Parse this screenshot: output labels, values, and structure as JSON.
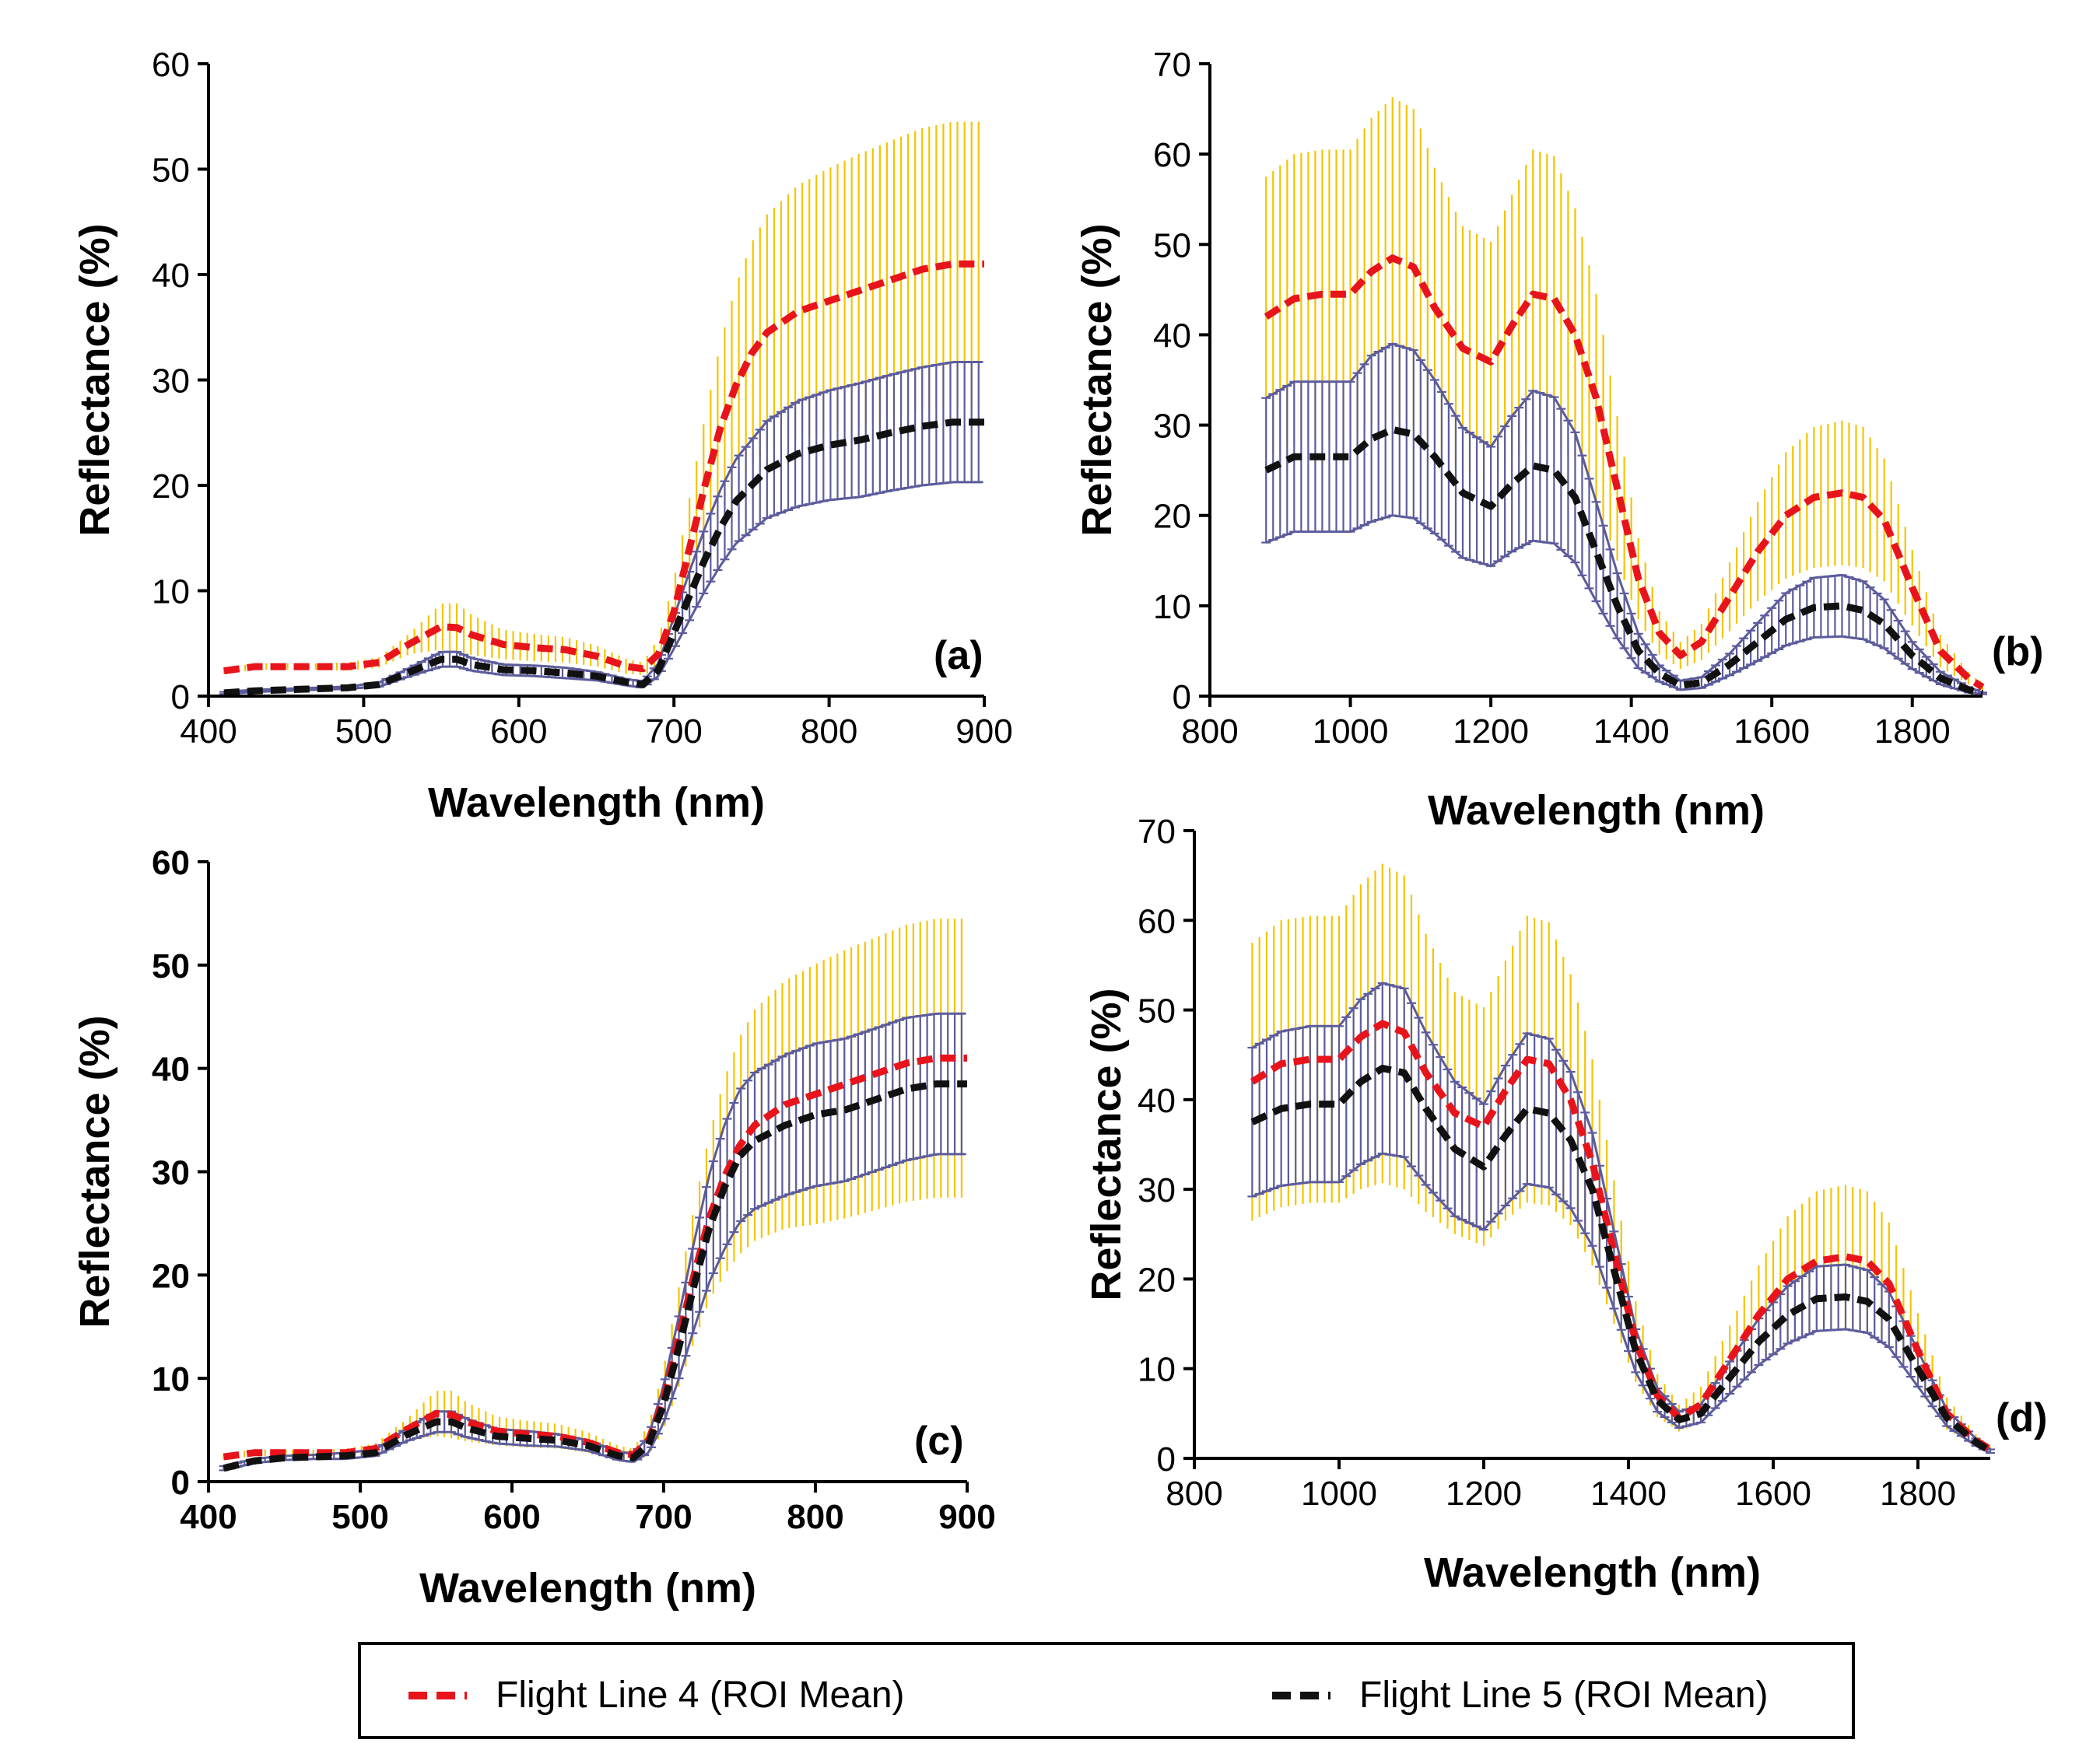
{
  "legend": {
    "items": [
      {
        "label": "Flight Line 4 (ROI Mean)",
        "color": "#e8141b"
      },
      {
        "label": "Flight Line 5 (ROI Mean)",
        "color": "#111111"
      }
    ]
  },
  "chart_data": [
    {
      "panel_label": "(a)",
      "type": "line",
      "xlabel": "Wavelength (nm)",
      "ylabel": "Reflectance (%)",
      "xlim": [
        400,
        900
      ],
      "ylim": [
        0,
        60
      ],
      "xticks": [
        "400",
        "500",
        "600",
        "700",
        "800",
        "900"
      ],
      "yticks": [
        "0",
        "10",
        "20",
        "30",
        "40",
        "50",
        "60"
      ],
      "tick_bold": false,
      "series": [
        {
          "name": "Flight Line 4 (ROI Mean)",
          "color": "#e8141b",
          "errcolor": "#f5c400",
          "x": [
            410,
            430,
            450,
            470,
            490,
            510,
            530,
            550,
            560,
            570,
            590,
            610,
            630,
            650,
            670,
            680,
            690,
            700,
            710,
            720,
            730,
            740,
            750,
            760,
            780,
            800,
            820,
            840,
            860,
            880,
            900
          ],
          "y": [
            2.4,
            2.8,
            2.8,
            2.8,
            2.8,
            3.2,
            5.0,
            6.6,
            6.5,
            5.8,
            4.9,
            4.6,
            4.4,
            3.8,
            2.8,
            2.6,
            4.0,
            8.0,
            14.0,
            20.0,
            25.5,
            29.5,
            32.5,
            34.5,
            36.5,
            37.5,
            38.5,
            39.5,
            40.5,
            41.0,
            41.0
          ],
          "err": [
            0.3,
            0.3,
            0.3,
            0.3,
            0.4,
            0.5,
            1.0,
            2.2,
            2.3,
            1.9,
            1.4,
            1.3,
            1.2,
            1.0,
            0.7,
            0.6,
            1.5,
            3.0,
            4.8,
            6.5,
            8.0,
            9.5,
            10.5,
            11.2,
            12.0,
            12.6,
            13.0,
            13.2,
            13.4,
            13.5,
            13.5
          ]
        },
        {
          "name": "Flight Line 5 (ROI Mean)",
          "color": "#111111",
          "errcolor": "#5c5c9c",
          "x": [
            410,
            430,
            450,
            470,
            490,
            510,
            530,
            550,
            560,
            570,
            590,
            610,
            630,
            650,
            670,
            680,
            690,
            700,
            710,
            720,
            730,
            740,
            750,
            760,
            780,
            800,
            820,
            840,
            860,
            880,
            900
          ],
          "y": [
            0.3,
            0.5,
            0.6,
            0.7,
            0.8,
            1.1,
            2.3,
            3.5,
            3.5,
            3.0,
            2.5,
            2.4,
            2.2,
            1.9,
            1.3,
            1.1,
            2.5,
            6.0,
            9.5,
            13.0,
            16.0,
            18.5,
            20.0,
            21.5,
            23.0,
            23.8,
            24.3,
            25.0,
            25.6,
            26.0,
            26.0
          ],
          "err": [
            0.1,
            0.1,
            0.1,
            0.1,
            0.1,
            0.2,
            0.4,
            0.7,
            0.7,
            0.6,
            0.5,
            0.5,
            0.5,
            0.4,
            0.3,
            0.3,
            0.6,
            1.5,
            2.3,
            3.0,
            3.6,
            4.0,
            4.3,
            4.6,
            5.0,
            5.2,
            5.4,
            5.5,
            5.6,
            5.7,
            5.7
          ]
        }
      ]
    },
    {
      "panel_label": "(b)",
      "type": "line",
      "xlabel": "Wavelength (nm)",
      "ylabel": "Reflectance (%)",
      "xlim": [
        800,
        1900
      ],
      "ylim": [
        0,
        70
      ],
      "xticks": [
        "800",
        "1000",
        "1200",
        "1400",
        "1600",
        "1800"
      ],
      "yticks": [
        "0",
        "10",
        "20",
        "30",
        "40",
        "50",
        "60",
        "70"
      ],
      "tick_bold": false,
      "series": [
        {
          "name": "Flight Line 4 (ROI Mean)",
          "color": "#e8141b",
          "errcolor": "#f5c400",
          "x": [
            880,
            920,
            960,
            1000,
            1030,
            1060,
            1090,
            1120,
            1160,
            1200,
            1230,
            1260,
            1290,
            1320,
            1350,
            1380,
            1410,
            1440,
            1470,
            1500,
            1540,
            1580,
            1620,
            1660,
            1700,
            1730,
            1760,
            1800,
            1840,
            1880,
            1900
          ],
          "y": [
            42,
            44,
            44.5,
            44.5,
            47,
            48.5,
            47.5,
            43,
            38.5,
            37,
            41,
            44.5,
            44,
            40,
            33,
            23,
            13,
            7,
            4.5,
            6,
            11,
            16,
            20,
            22,
            22.5,
            22,
            19.5,
            12,
            5,
            2,
            1
          ],
          "err": [
            15.5,
            16,
            16,
            16,
            17,
            17.8,
            17.5,
            15.5,
            13.5,
            13.3,
            14.5,
            16,
            15.8,
            14,
            11.5,
            8,
            4.5,
            2.4,
            1.5,
            2,
            3.8,
            5.5,
            7,
            7.8,
            8,
            7.8,
            6.8,
            4.2,
            1.8,
            0.7,
            0.3
          ]
        },
        {
          "name": "Flight Line 5 (ROI Mean)",
          "color": "#111111",
          "errcolor": "#5c5c9c",
          "x": [
            880,
            920,
            960,
            1000,
            1030,
            1060,
            1090,
            1120,
            1160,
            1200,
            1230,
            1260,
            1290,
            1320,
            1350,
            1380,
            1410,
            1440,
            1470,
            1500,
            1540,
            1580,
            1620,
            1660,
            1700,
            1730,
            1760,
            1800,
            1840,
            1880,
            1900
          ],
          "y": [
            25,
            26.5,
            26.5,
            26.5,
            28.5,
            29.5,
            29,
            26.5,
            22.5,
            21,
            23.5,
            25.5,
            25,
            22,
            16,
            10,
            5,
            2.5,
            1.2,
            1.5,
            3.5,
            6,
            8.5,
            9.8,
            10,
            9.5,
            8,
            4.5,
            2,
            0.7,
            0.3
          ],
          "err": [
            8,
            8.3,
            8.3,
            8.3,
            9.2,
            9.5,
            9.3,
            8.5,
            7.2,
            6.6,
            7.5,
            8.3,
            8.1,
            7.2,
            5.5,
            3.6,
            1.9,
            0.9,
            0.5,
            0.6,
            1.2,
            2.1,
            2.9,
            3.3,
            3.4,
            3.2,
            2.7,
            1.5,
            0.7,
            0.3,
            0.1
          ]
        }
      ]
    },
    {
      "panel_label": "(c)",
      "type": "line",
      "xlabel": "Wavelength (nm)",
      "ylabel": "Reflectance (%)",
      "xlim": [
        400,
        900
      ],
      "ylim": [
        0,
        60
      ],
      "xticks": [
        "400",
        "500",
        "600",
        "700",
        "800",
        "900"
      ],
      "yticks": [
        "0",
        "10",
        "20",
        "30",
        "40",
        "50",
        "60"
      ],
      "tick_bold": true,
      "series": [
        {
          "name": "Flight Line 4 (ROI Mean)",
          "color": "#e8141b",
          "errcolor": "#f5c400",
          "x": [
            410,
            430,
            450,
            470,
            490,
            510,
            530,
            550,
            560,
            570,
            590,
            610,
            630,
            650,
            670,
            680,
            690,
            700,
            710,
            720,
            730,
            740,
            750,
            760,
            780,
            800,
            820,
            840,
            860,
            880,
            900
          ],
          "y": [
            2.4,
            2.8,
            2.8,
            2.8,
            2.8,
            3.2,
            5.0,
            6.6,
            6.5,
            5.8,
            4.9,
            4.6,
            4.4,
            3.8,
            2.8,
            2.6,
            4.0,
            8.0,
            14.0,
            20.0,
            25.5,
            29.5,
            32.5,
            34.5,
            36.5,
            37.5,
            38.5,
            39.5,
            40.5,
            41.0,
            41.0
          ],
          "err": [
            0.3,
            0.3,
            0.3,
            0.3,
            0.4,
            0.5,
            1.0,
            2.2,
            2.3,
            1.9,
            1.4,
            1.3,
            1.2,
            1.0,
            0.7,
            0.6,
            1.5,
            3.0,
            4.8,
            6.5,
            8.0,
            9.5,
            10.5,
            11.2,
            12.0,
            12.6,
            13.0,
            13.2,
            13.4,
            13.5,
            13.5
          ]
        },
        {
          "name": "Flight Line 5 (ROI Mean)",
          "color": "#111111",
          "errcolor": "#5c5c9c",
          "x": [
            410,
            430,
            450,
            470,
            490,
            510,
            530,
            550,
            560,
            570,
            590,
            610,
            630,
            650,
            670,
            680,
            690,
            700,
            710,
            720,
            730,
            740,
            750,
            760,
            780,
            800,
            820,
            840,
            860,
            880,
            900
          ],
          "y": [
            1.3,
            2.0,
            2.3,
            2.4,
            2.5,
            2.8,
            4.5,
            5.8,
            5.8,
            5.2,
            4.4,
            4.2,
            4.0,
            3.5,
            2.5,
            2.3,
            3.6,
            7.5,
            13.0,
            19.0,
            24.5,
            28.5,
            31.5,
            33.0,
            34.5,
            35.5,
            36.0,
            37.0,
            38.0,
            38.5,
            38.5
          ],
          "err": [
            0.2,
            0.2,
            0.2,
            0.2,
            0.3,
            0.3,
            0.6,
            1.0,
            1.0,
            0.9,
            0.7,
            0.7,
            0.6,
            0.5,
            0.4,
            0.4,
            0.8,
            1.8,
            3.0,
            4.2,
            5.2,
            6.0,
            6.4,
            6.6,
            6.8,
            6.9,
            6.9,
            6.9,
            6.9,
            6.8,
            6.8
          ]
        }
      ]
    },
    {
      "panel_label": "(d)",
      "type": "line",
      "xlabel": "Wavelength (nm)",
      "ylabel": "Reflectance (%)",
      "xlim": [
        800,
        1900
      ],
      "ylim": [
        0,
        70
      ],
      "xticks": [
        "800",
        "1000",
        "1200",
        "1400",
        "1600",
        "1800"
      ],
      "yticks": [
        "0",
        "10",
        "20",
        "30",
        "40",
        "50",
        "60",
        "70"
      ],
      "tick_bold": false,
      "series": [
        {
          "name": "Flight Line 4 (ROI Mean)",
          "color": "#e8141b",
          "errcolor": "#f5c400",
          "x": [
            880,
            920,
            960,
            1000,
            1030,
            1060,
            1090,
            1120,
            1160,
            1200,
            1230,
            1260,
            1290,
            1320,
            1350,
            1380,
            1410,
            1440,
            1470,
            1500,
            1540,
            1580,
            1620,
            1660,
            1700,
            1730,
            1760,
            1800,
            1840,
            1880,
            1900
          ],
          "y": [
            42,
            44,
            44.5,
            44.5,
            47,
            48.5,
            47.5,
            43,
            38.5,
            37,
            41,
            44.5,
            44,
            40,
            33,
            23,
            13,
            7,
            4.5,
            6,
            11,
            16,
            20,
            22,
            22.5,
            22,
            19.5,
            12,
            5,
            2,
            1
          ],
          "err": [
            15.5,
            16,
            16,
            16,
            17,
            17.8,
            17.5,
            15.5,
            13.5,
            13.3,
            14.5,
            16,
            15.8,
            14,
            11.5,
            8,
            4.5,
            2.4,
            1.5,
            2,
            3.8,
            5.5,
            7,
            7.8,
            8,
            7.8,
            6.8,
            4.2,
            1.8,
            0.7,
            0.3
          ]
        },
        {
          "name": "Flight Line 5 (ROI Mean)",
          "color": "#111111",
          "errcolor": "#5c5c9c",
          "x": [
            880,
            920,
            960,
            1000,
            1030,
            1060,
            1090,
            1120,
            1160,
            1200,
            1230,
            1260,
            1290,
            1320,
            1350,
            1380,
            1410,
            1440,
            1470,
            1500,
            1540,
            1580,
            1620,
            1660,
            1700,
            1730,
            1760,
            1800,
            1840,
            1880,
            1900
          ],
          "y": [
            37.5,
            39,
            39.5,
            39.5,
            42,
            43.5,
            43,
            39,
            34.5,
            32.5,
            36,
            39,
            38.5,
            35.5,
            30,
            21,
            12,
            6.5,
            4.3,
            5,
            9,
            13,
            16,
            17.8,
            18,
            17.5,
            15.5,
            10,
            4.5,
            1.8,
            0.8
          ],
          "err": [
            8.3,
            8.6,
            8.7,
            8.7,
            9.2,
            9.5,
            9.4,
            8.5,
            7.5,
            7.0,
            7.8,
            8.4,
            8.3,
            7.6,
            6.3,
            4.3,
            2.4,
            1.3,
            0.9,
            1.0,
            1.8,
            2.6,
            3.2,
            3.6,
            3.6,
            3.5,
            3.1,
            2.0,
            0.9,
            0.4,
            0.2
          ]
        }
      ]
    }
  ]
}
